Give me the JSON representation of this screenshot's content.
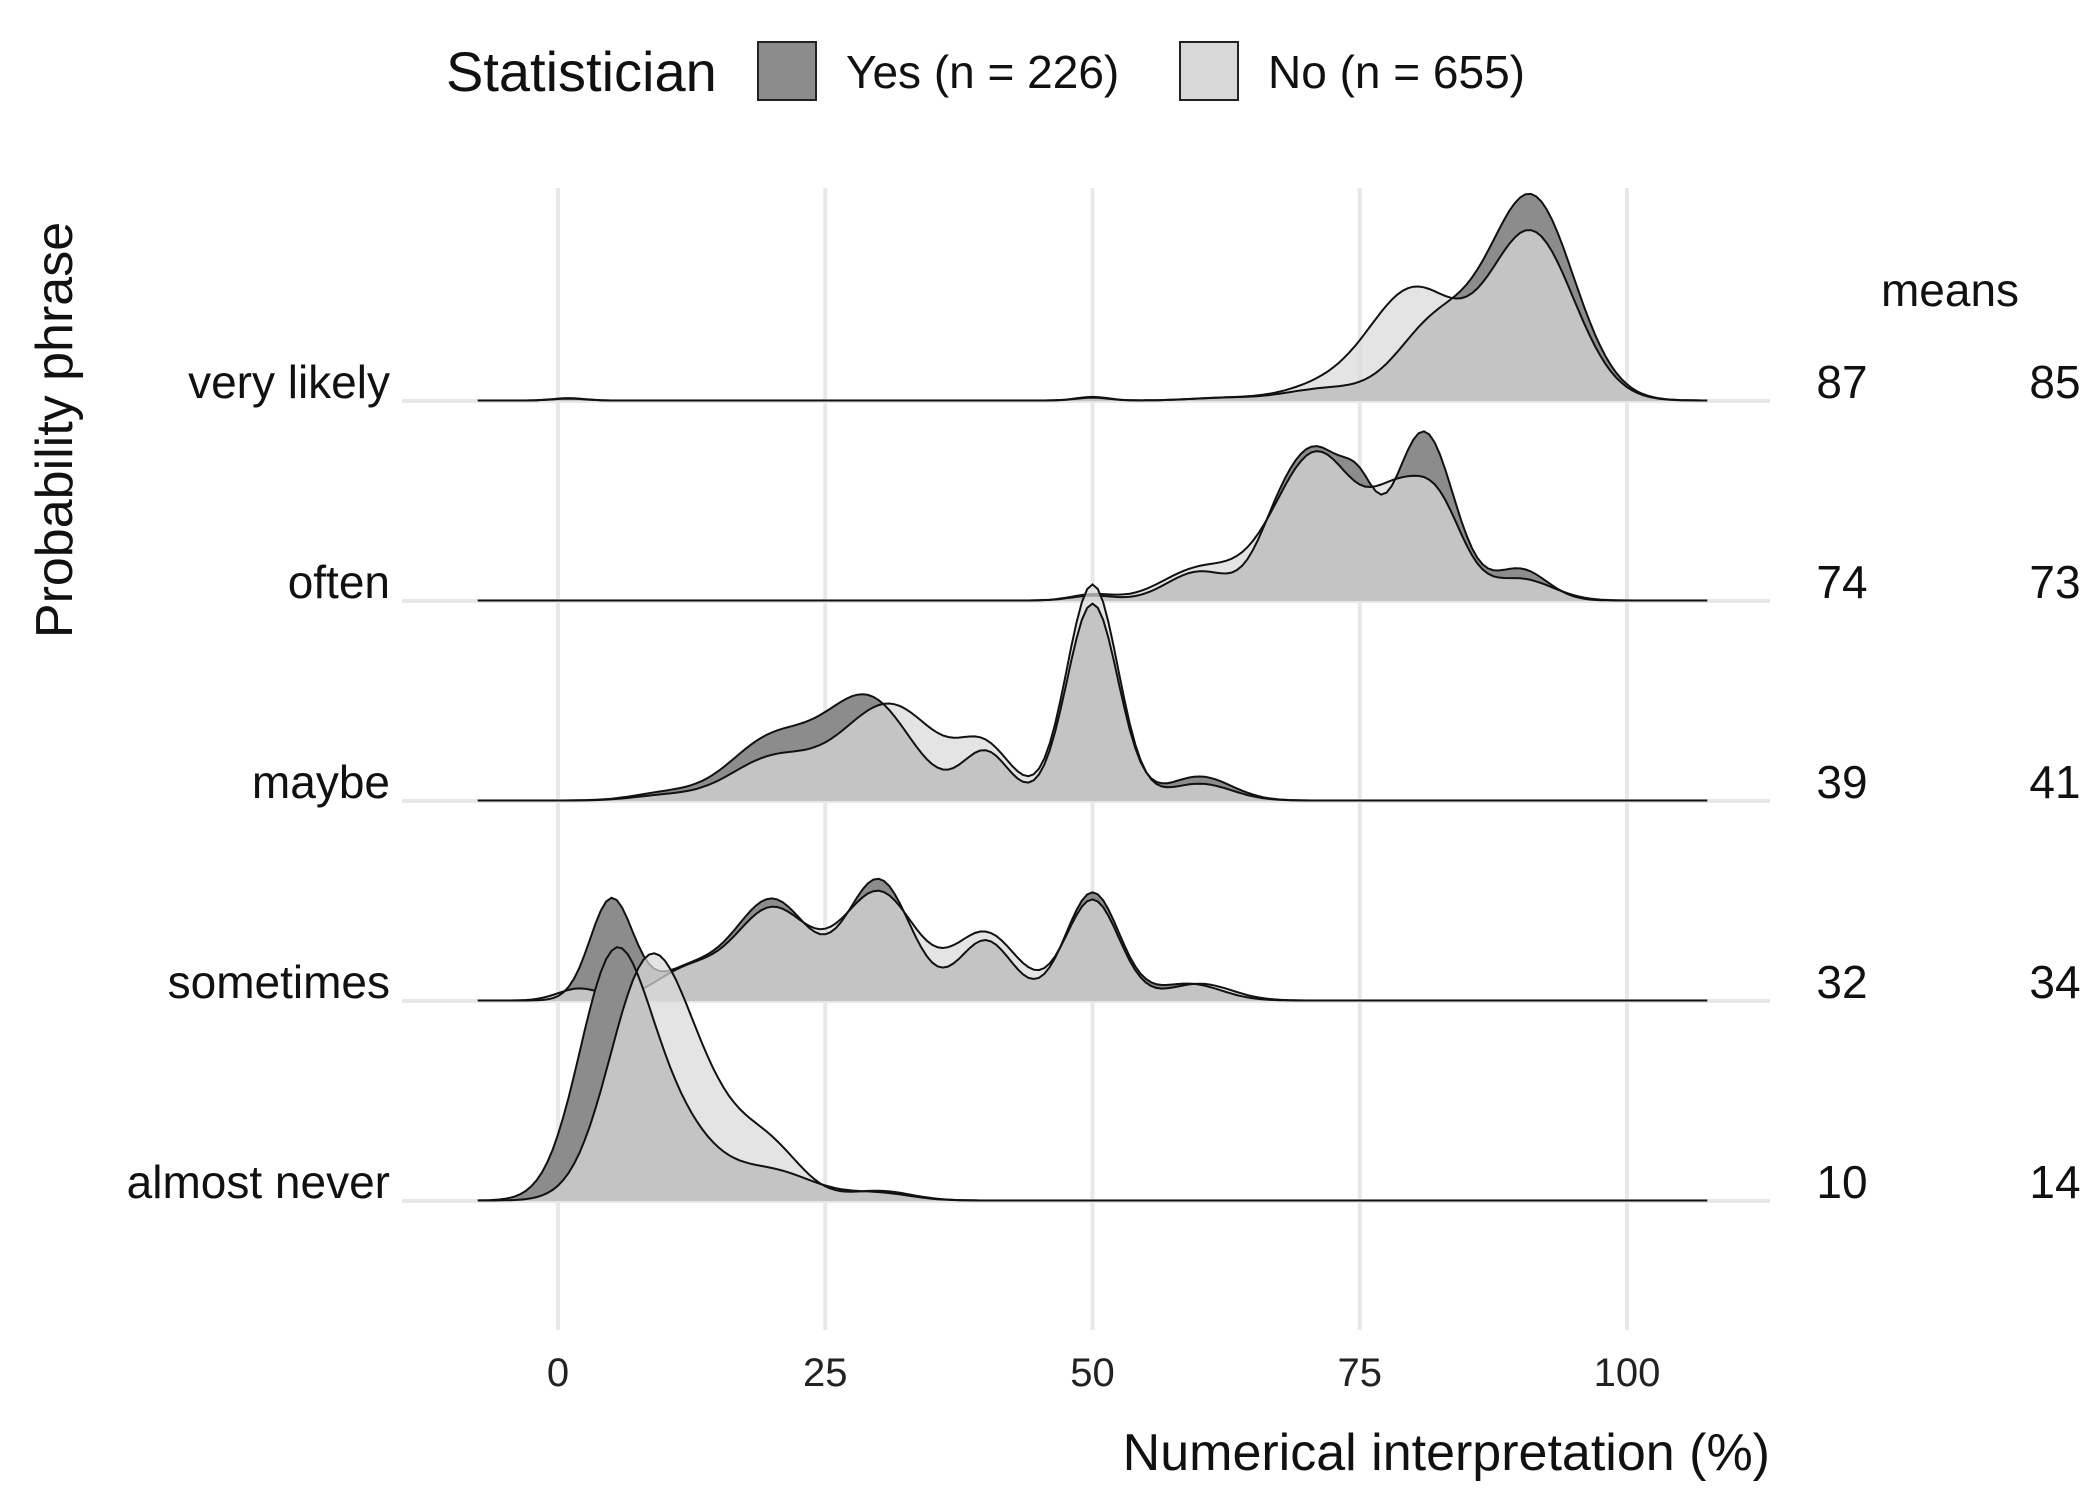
{
  "chart_data": {
    "type": "ridgeline-density",
    "xlabel": "Numerical interpretation (%)",
    "ylabel": "Probability phrase",
    "x_ticks": [
      0,
      25,
      50,
      75,
      100
    ],
    "x_range": [
      -7.5,
      107.5
    ],
    "grid": true,
    "legend": {
      "position": "top",
      "title": "Statistician",
      "entries": [
        {
          "key": "yes",
          "label": "Yes (n = 226)",
          "color": "#8c8c8c"
        },
        {
          "key": "no",
          "label": "No (n = 655)",
          "color": "#d9d9d9"
        }
      ]
    },
    "means_label": "means",
    "categories": [
      {
        "name": "very likely",
        "mean_yes": "87",
        "mean_no": "85",
        "yes_peaks": [
          [
            1,
            0.01,
            1.5
          ],
          [
            50,
            0.015,
            1.5
          ],
          [
            62,
            0.01,
            3
          ],
          [
            72,
            0.05,
            4
          ],
          [
            82,
            0.3,
            3.5
          ],
          [
            91,
            0.85,
            4
          ]
        ],
        "no_peaks": [
          [
            1,
            0.008,
            1.5
          ],
          [
            50,
            0.012,
            1.5
          ],
          [
            62,
            0.01,
            3
          ],
          [
            72,
            0.06,
            4
          ],
          [
            80,
            0.45,
            4
          ],
          [
            91,
            0.7,
            4
          ]
        ]
      },
      {
        "name": "often",
        "mean_yes": "74",
        "mean_no": "73",
        "yes_peaks": [
          [
            50,
            0.02,
            2
          ],
          [
            60,
            0.12,
            3
          ],
          [
            67,
            0.12,
            2
          ],
          [
            71,
            0.62,
            3.2
          ],
          [
            75,
            0.2,
            1.5
          ],
          [
            81,
            0.7,
            2.8
          ],
          [
            90,
            0.13,
            2.5
          ]
        ],
        "no_peaks": [
          [
            50,
            0.025,
            2
          ],
          [
            60,
            0.13,
            3.5
          ],
          [
            71,
            0.62,
            4
          ],
          [
            78,
            0.25,
            2.2
          ],
          [
            82,
            0.42,
            2.5
          ],
          [
            90,
            0.09,
            3
          ]
        ]
      },
      {
        "name": "maybe",
        "mean_yes": "39",
        "mean_no": "41",
        "yes_peaks": [
          [
            10,
            0.03,
            3
          ],
          [
            20,
            0.25,
            4
          ],
          [
            29,
            0.42,
            4
          ],
          [
            40,
            0.2,
            2.2
          ],
          [
            50,
            0.82,
            2.4
          ],
          [
            60,
            0.1,
            3
          ]
        ],
        "no_peaks": [
          [
            10,
            0.02,
            3
          ],
          [
            20,
            0.17,
            4
          ],
          [
            31,
            0.4,
            4.5
          ],
          [
            40,
            0.2,
            2.5
          ],
          [
            50,
            0.9,
            2.4
          ],
          [
            60,
            0.07,
            3
          ]
        ]
      },
      {
        "name": "sometimes",
        "mean_yes": "32",
        "mean_no": "34",
        "yes_peaks": [
          [
            5,
            0.42,
            2
          ],
          [
            12,
            0.12,
            3
          ],
          [
            20,
            0.42,
            3.5
          ],
          [
            30,
            0.5,
            3
          ],
          [
            40,
            0.25,
            2.5
          ],
          [
            50,
            0.45,
            2.5
          ],
          [
            59,
            0.07,
            3
          ]
        ],
        "no_peaks": [
          [
            2,
            0.05,
            2
          ],
          [
            12,
            0.12,
            3
          ],
          [
            20,
            0.38,
            3.5
          ],
          [
            30,
            0.45,
            3.5
          ],
          [
            40,
            0.28,
            3
          ],
          [
            50,
            0.42,
            2.5
          ],
          [
            60,
            0.07,
            3
          ]
        ]
      },
      {
        "name": "almost never",
        "mean_yes": "10",
        "mean_no": "14",
        "yes_peaks": [
          [
            5,
            0.88,
            3.2
          ],
          [
            10,
            0.35,
            4
          ],
          [
            20,
            0.12,
            4
          ],
          [
            30,
            0.03,
            3
          ]
        ],
        "no_peaks": [
          [
            8,
            0.82,
            3.5
          ],
          [
            13,
            0.4,
            4
          ],
          [
            20,
            0.18,
            3
          ],
          [
            30,
            0.04,
            3
          ]
        ]
      }
    ]
  }
}
